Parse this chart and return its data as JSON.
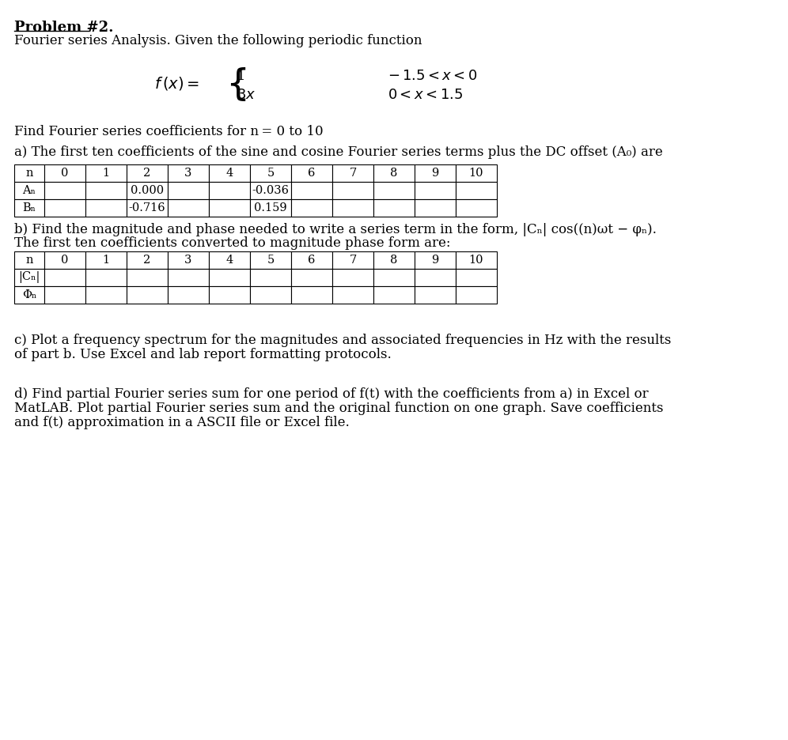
{
  "title": "Problem #2.",
  "subtitle": "Fourier series Analysis. Given the following periodic function",
  "find_text": "Find Fourier series coefficients for n = 0 to 10",
  "part_a_text": "a) The first ten coefficients of the sine and cosine Fourier series terms plus the DC offset (A₀) are",
  "table_a_headers": [
    "n",
    "0",
    "1",
    "2",
    "3",
    "4",
    "5",
    "6",
    "7",
    "8",
    "9",
    "10"
  ],
  "table_a_row1_label": "Aₙ",
  "table_a_row2_label": "Bₙ",
  "table_a_row1_vals": [
    "",
    "",
    "0.000",
    "",
    "",
    "-0.036",
    "",
    "",
    "",
    "",
    ""
  ],
  "table_a_row2_vals": [
    "",
    "",
    "-0.716",
    "",
    "",
    "0.159",
    "",
    "",
    "",
    "",
    ""
  ],
  "part_b_text1": "b) Find the magnitude and phase needed to write a series term in the form, |Cₙ| cos((n)ωt − φₙ).",
  "part_b_text2": "The first ten coefficients converted to magnitude phase form are:",
  "table_b_headers": [
    "n",
    "0",
    "1",
    "2",
    "3",
    "4",
    "5",
    "6",
    "7",
    "8",
    "9",
    "10"
  ],
  "table_b_row1_label": "|Cₙ|",
  "table_b_row2_label": "Φₙ",
  "part_c_text1": "c) Plot a frequency spectrum for the magnitudes and associated frequencies in Hz with the results",
  "part_c_text2": "of part b. Use Excel and lab report formatting protocols.",
  "part_d_text1": "d) Find partial Fourier series sum for one period of f(t) with the coefficients from a) in Excel or",
  "part_d_text2": "MatLAB. Plot partial Fourier series sum and the original function on one graph. Save coefficients",
  "part_d_text3": "and f(t) approximation in a ASCII file or Excel file.",
  "bg_color": "#ffffff",
  "text_color": "#000000",
  "font_size_title": 13,
  "font_size_body": 12,
  "font_size_table": 10.5
}
